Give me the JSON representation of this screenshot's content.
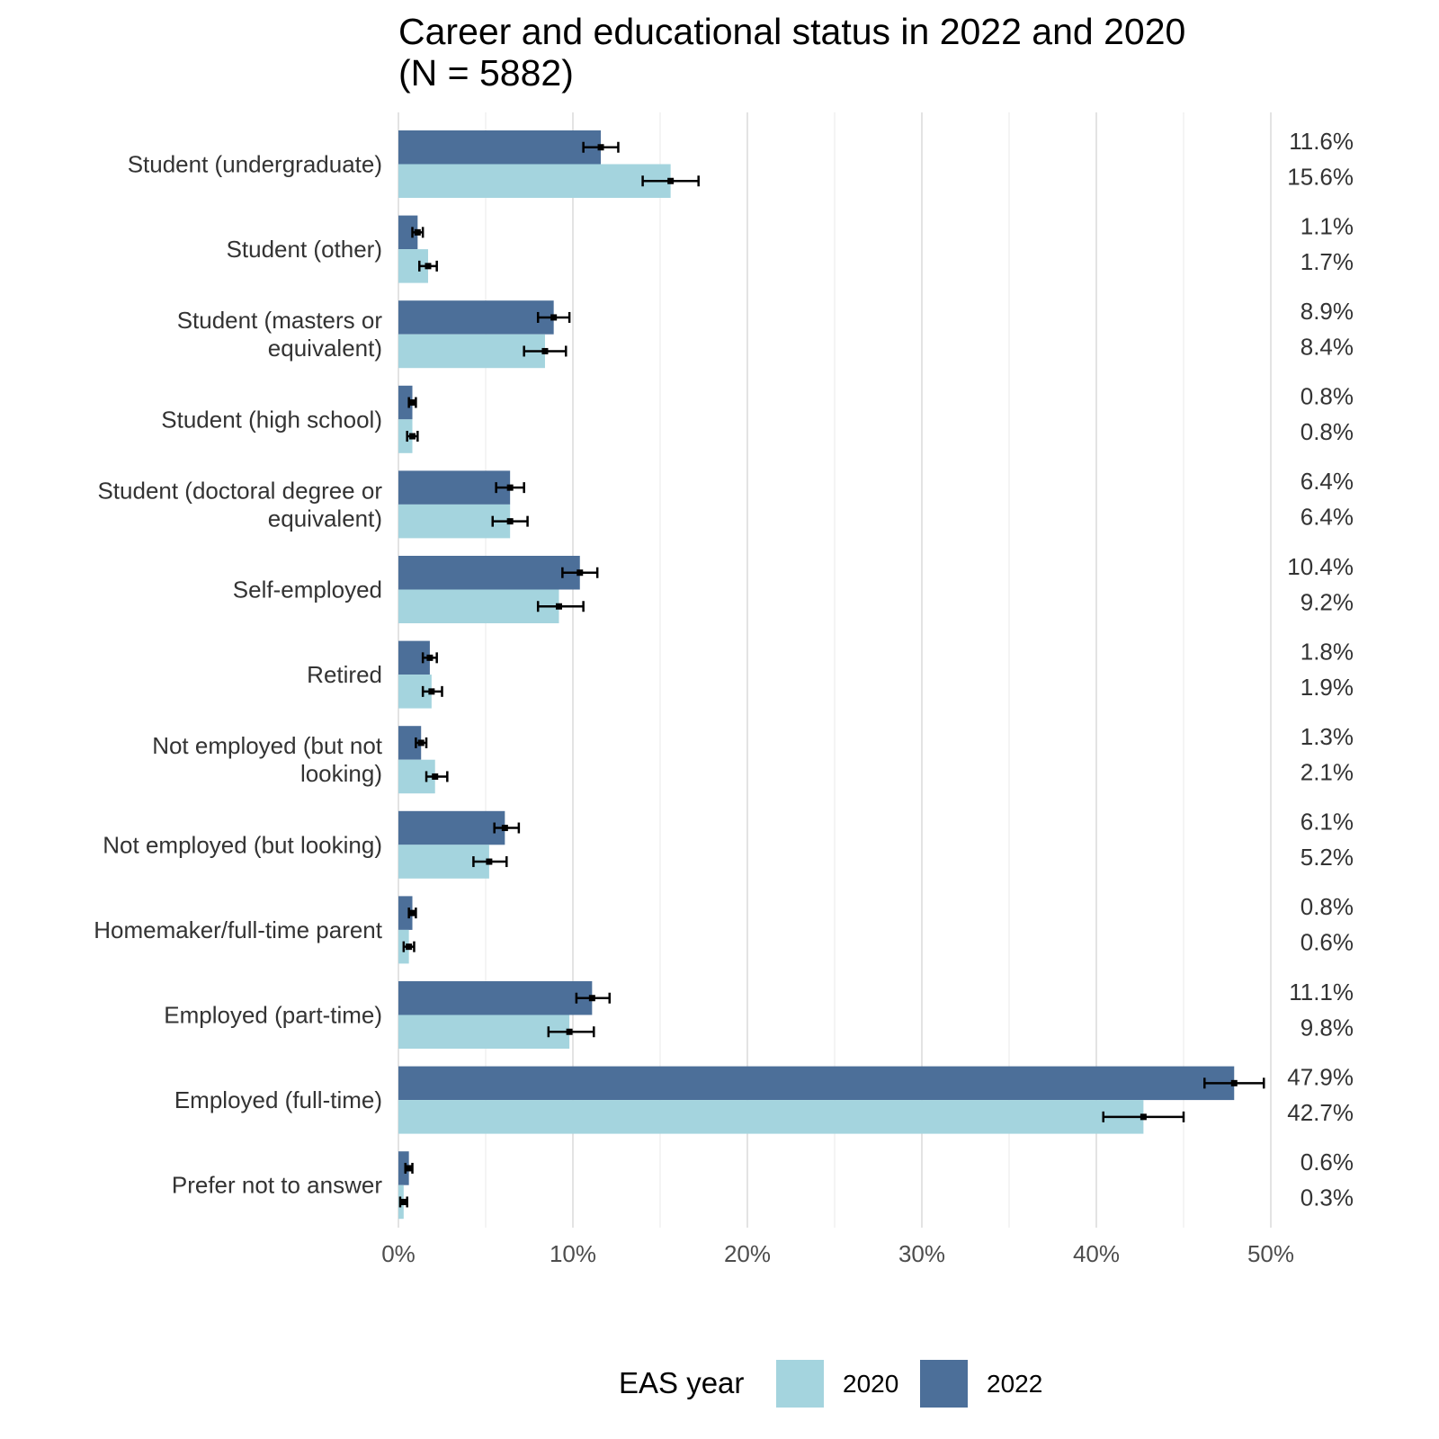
{
  "chart_data": {
    "type": "bar",
    "orientation": "horizontal",
    "title_lines": [
      "Career and educational status in 2022 and 2020",
      "(N = 5882)"
    ],
    "xlabel": "",
    "ylabel": "",
    "xlim": [
      0,
      50
    ],
    "x_ticks": [
      "0%",
      "10%",
      "20%",
      "30%",
      "40%",
      "50%"
    ],
    "x_tick_values": [
      0,
      10,
      20,
      30,
      40,
      50
    ],
    "grid": true,
    "legend": {
      "title": "EAS year",
      "placement": "bottom"
    },
    "categories": [
      [
        "Student (undergraduate)"
      ],
      [
        "Student (other)"
      ],
      [
        "Student (masters or",
        "equivalent)"
      ],
      [
        "Student (high school)"
      ],
      [
        "Student (doctoral degree or",
        "equivalent)"
      ],
      [
        "Self-employed"
      ],
      [
        "Retired"
      ],
      [
        "Not employed (but not",
        "looking)"
      ],
      [
        "Not employed (but looking)"
      ],
      [
        "Homemaker/full-time parent"
      ],
      [
        "Employed (part-time)"
      ],
      [
        "Employed (full-time)"
      ],
      [
        "Prefer not to answer"
      ]
    ],
    "series": [
      {
        "name": "2022",
        "color": "#4c6f99",
        "values": [
          11.6,
          1.1,
          8.9,
          0.8,
          6.4,
          10.4,
          1.8,
          1.3,
          6.1,
          0.8,
          11.1,
          47.9,
          0.6
        ],
        "labels": [
          "11.6%",
          "1.1%",
          "8.9%",
          "0.8%",
          "6.4%",
          "10.4%",
          "1.8%",
          "1.3%",
          "6.1%",
          "0.8%",
          "11.1%",
          "47.9%",
          "0.6%"
        ],
        "ci_low": [
          10.6,
          0.8,
          8.0,
          0.6,
          5.6,
          9.4,
          1.4,
          1.0,
          5.5,
          0.6,
          10.2,
          46.2,
          0.4
        ],
        "ci_high": [
          12.6,
          1.4,
          9.8,
          1.0,
          7.2,
          11.4,
          2.2,
          1.6,
          6.9,
          1.0,
          12.1,
          49.6,
          0.8
        ]
      },
      {
        "name": "2020",
        "color": "#a4d4de",
        "values": [
          15.6,
          1.7,
          8.4,
          0.8,
          6.4,
          9.2,
          1.9,
          2.1,
          5.2,
          0.6,
          9.8,
          42.7,
          0.3
        ],
        "labels": [
          "15.6%",
          "1.7%",
          "8.4%",
          "0.8%",
          "6.4%",
          "9.2%",
          "1.9%",
          "2.1%",
          "5.2%",
          "0.6%",
          "9.8%",
          "42.7%",
          "0.3%"
        ],
        "ci_low": [
          14.0,
          1.2,
          7.2,
          0.5,
          5.4,
          8.0,
          1.4,
          1.6,
          4.3,
          0.3,
          8.6,
          40.4,
          0.1
        ],
        "ci_high": [
          17.2,
          2.2,
          9.6,
          1.1,
          7.4,
          10.6,
          2.5,
          2.8,
          6.2,
          0.9,
          11.2,
          45.0,
          0.5
        ]
      }
    ],
    "legend_order": [
      "2020",
      "2022"
    ]
  }
}
